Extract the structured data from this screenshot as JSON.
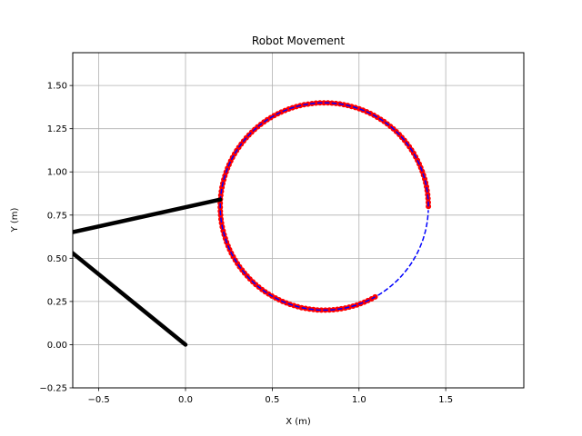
{
  "chart_data": {
    "type": "line",
    "title": "Robot Movement",
    "xlabel": "X (m)",
    "ylabel": "Y (m)",
    "xlim": [
      -0.65,
      1.95
    ],
    "ylim": [
      -0.25,
      1.69
    ],
    "xticks": [
      -0.5,
      0.0,
      0.5,
      1.0,
      1.5
    ],
    "xtick_labels": [
      "−0.5",
      "0.0",
      "0.5",
      "1.0",
      "1.5"
    ],
    "yticks": [
      -0.25,
      0.0,
      0.25,
      0.5,
      0.75,
      1.0,
      1.25,
      1.5
    ],
    "ytick_labels": [
      "−0.25",
      "0.00",
      "0.25",
      "0.50",
      "0.75",
      "1.00",
      "1.25",
      "1.50"
    ],
    "grid": true,
    "legend": false,
    "planned_path": {
      "style": "dashed",
      "color": "#0000ff",
      "center": [
        0.8,
        0.8
      ],
      "radius": 0.6,
      "start_angle_deg": 0,
      "end_angle_deg": 358
    },
    "robot_trail": {
      "marker": "dot",
      "color": "#ff0000",
      "line_color": "#0000ff",
      "center": [
        0.8,
        0.8
      ],
      "radius": 0.6,
      "start_angle_deg": 0,
      "end_angle_deg": 300
    },
    "arm_links": {
      "color": "#000000",
      "segments": [
        {
          "from": [
            0.0,
            0.0
          ],
          "to": [
            -0.7,
            0.57
          ]
        },
        {
          "from": [
            -0.7,
            0.64
          ],
          "to": [
            0.2,
            0.84
          ]
        }
      ]
    }
  }
}
